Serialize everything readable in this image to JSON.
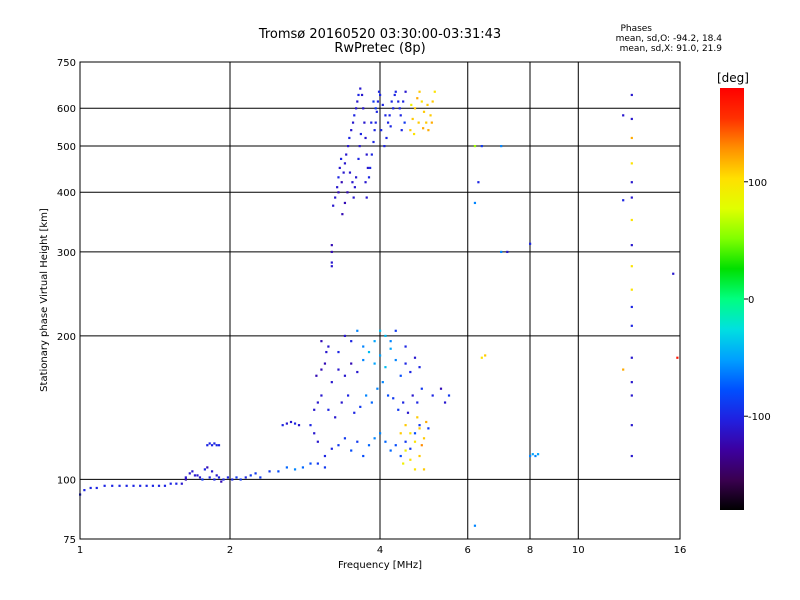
{
  "header": {
    "title": "Tromsø 20160520 03:30:00-03:31:43",
    "subtitle": "RwPretec (8p)"
  },
  "stats": {
    "heading": "Phases",
    "line_o": "mean, sd,O: -94.2, 18.4",
    "line_x": "mean, sd,X:  91.0, 21.9"
  },
  "colorbar": {
    "unit": "[deg]",
    "ticks": [
      {
        "value": 100,
        "label": "100"
      },
      {
        "value": 0,
        "label": "0"
      },
      {
        "value": -100,
        "label": "-100"
      }
    ],
    "range": [
      -180,
      180
    ],
    "palette": [
      "#000000",
      "#3a0050",
      "#3c00a0",
      "#2020e0",
      "#0050ff",
      "#00a0ff",
      "#00e0e0",
      "#00ff80",
      "#00e000",
      "#80ff00",
      "#e0ff00",
      "#ffe000",
      "#ff9000",
      "#ff3000",
      "#ff0000"
    ]
  },
  "chart_data": {
    "type": "scatter",
    "title": "Tromsø 20160520 03:30:00-03:31:43",
    "subtitle": "RwPretec (8p)",
    "xlabel": "Frequency [MHz]",
    "ylabel": "Stationary phase Virtual Height [km]",
    "xscale": "log",
    "yscale": "log",
    "xlim": [
      1,
      16
    ],
    "ylim": [
      75,
      750
    ],
    "x_ticks": [
      {
        "value": 1,
        "label": "1"
      },
      {
        "value": 2,
        "label": "2"
      },
      {
        "value": 4,
        "label": "4"
      },
      {
        "value": 6,
        "label": "6"
      },
      {
        "value": 8,
        "label": "8"
      },
      {
        "value": 10,
        "label": "10"
      },
      {
        "value": 16,
        "label": "16"
      }
    ],
    "y_ticks": [
      {
        "value": 75,
        "label": "75"
      },
      {
        "value": 100,
        "label": "100"
      },
      {
        "value": 200,
        "label": "200"
      },
      {
        "value": 300,
        "label": "300"
      },
      {
        "value": 400,
        "label": "400"
      },
      {
        "value": 500,
        "label": "500"
      },
      {
        "value": 600,
        "label": "600"
      },
      {
        "value": 750,
        "label": "750"
      }
    ],
    "x_grid": [
      1,
      2,
      4,
      6,
      8,
      10,
      16
    ],
    "y_grid": [
      100,
      200,
      300,
      400,
      500,
      600
    ],
    "color_encoding": "phase [deg]",
    "points": [
      [
        1.0,
        93,
        -100
      ],
      [
        1.02,
        95,
        -100
      ],
      [
        1.05,
        96,
        -100
      ],
      [
        1.08,
        96,
        -100
      ],
      [
        1.12,
        97,
        -100
      ],
      [
        1.16,
        97,
        -100
      ],
      [
        1.2,
        97,
        -100
      ],
      [
        1.24,
        97,
        -100
      ],
      [
        1.28,
        97,
        -100
      ],
      [
        1.32,
        97,
        -100
      ],
      [
        1.36,
        97,
        -100
      ],
      [
        1.4,
        97,
        -100
      ],
      [
        1.44,
        97,
        -100
      ],
      [
        1.48,
        97,
        -100
      ],
      [
        1.52,
        98,
        -100
      ],
      [
        1.56,
        98,
        -100
      ],
      [
        1.6,
        98,
        -110
      ],
      [
        1.63,
        101,
        -110
      ],
      [
        1.66,
        103,
        -110
      ],
      [
        1.7,
        102,
        -110
      ],
      [
        1.74,
        101,
        -110
      ],
      [
        1.78,
        105,
        -100
      ],
      [
        1.82,
        101,
        -100
      ],
      [
        1.86,
        100,
        -100
      ],
      [
        1.9,
        101,
        -100
      ],
      [
        1.94,
        100,
        -100
      ],
      [
        1.98,
        101,
        -100
      ],
      [
        2.02,
        100,
        -100
      ],
      [
        2.06,
        101,
        -90
      ],
      [
        2.1,
        100,
        -90
      ],
      [
        2.15,
        101,
        -100
      ],
      [
        2.2,
        102,
        -90
      ],
      [
        2.25,
        103,
        -90
      ],
      [
        2.3,
        101,
        -90
      ],
      [
        2.4,
        104,
        -90
      ],
      [
        2.5,
        104,
        -80
      ],
      [
        2.6,
        106,
        -70
      ],
      [
        2.7,
        105,
        -60
      ],
      [
        2.8,
        106,
        -70
      ],
      [
        2.9,
        108,
        -80
      ],
      [
        3.0,
        108,
        -90
      ],
      [
        3.1,
        106,
        -90
      ],
      [
        1.63,
        100,
        -120
      ],
      [
        1.68,
        104,
        -110
      ],
      [
        1.72,
        102,
        -110
      ],
      [
        1.76,
        100,
        -90
      ],
      [
        1.8,
        106,
        -120
      ],
      [
        1.84,
        104,
        -110
      ],
      [
        1.88,
        102,
        -110
      ],
      [
        1.92,
        99,
        -120
      ],
      [
        1.8,
        118,
        -100
      ],
      [
        1.82,
        119,
        -100
      ],
      [
        1.84,
        118,
        -100
      ],
      [
        1.86,
        119,
        -100
      ],
      [
        1.88,
        118,
        -100
      ],
      [
        1.9,
        118,
        -100
      ],
      [
        2.55,
        130,
        -100
      ],
      [
        2.6,
        131,
        -110
      ],
      [
        2.65,
        132,
        -110
      ],
      [
        2.7,
        131,
        -100
      ],
      [
        2.75,
        130,
        -110
      ],
      [
        2.9,
        130,
        -100
      ],
      [
        2.95,
        125,
        -110
      ],
      [
        3.0,
        120,
        -110
      ],
      [
        2.95,
        140,
        -110
      ],
      [
        3.0,
        145,
        -110
      ],
      [
        3.05,
        150,
        -110
      ],
      [
        2.98,
        165,
        -120
      ],
      [
        3.05,
        170,
        -120
      ],
      [
        3.1,
        175,
        -120
      ],
      [
        3.12,
        185,
        -110
      ],
      [
        3.15,
        190,
        -110
      ],
      [
        3.05,
        195,
        -120
      ],
      [
        3.1,
        112,
        -100
      ],
      [
        3.2,
        116,
        -100
      ],
      [
        3.3,
        118,
        -90
      ],
      [
        3.4,
        122,
        -90
      ],
      [
        3.5,
        115,
        -80
      ],
      [
        3.6,
        120,
        -90
      ],
      [
        3.7,
        112,
        -80
      ],
      [
        3.8,
        118,
        -70
      ],
      [
        3.9,
        122,
        -60
      ],
      [
        4.0,
        125,
        -60
      ],
      [
        4.1,
        120,
        -70
      ],
      [
        4.2,
        115,
        -70
      ],
      [
        4.3,
        118,
        -80
      ],
      [
        4.4,
        112,
        -80
      ],
      [
        4.5,
        120,
        -90
      ],
      [
        4.6,
        116,
        -90
      ],
      [
        4.7,
        125,
        -80
      ],
      [
        4.8,
        130,
        -90
      ],
      [
        5.0,
        128,
        -90
      ],
      [
        3.15,
        140,
        -100
      ],
      [
        3.25,
        135,
        -110
      ],
      [
        3.35,
        145,
        -110
      ],
      [
        3.45,
        150,
        -100
      ],
      [
        3.55,
        138,
        -100
      ],
      [
        3.65,
        142,
        -90
      ],
      [
        3.75,
        150,
        -60
      ],
      [
        3.85,
        145,
        -70
      ],
      [
        3.95,
        155,
        -60
      ],
      [
        4.05,
        160,
        -60
      ],
      [
        4.15,
        150,
        -80
      ],
      [
        4.25,
        148,
        -90
      ],
      [
        4.35,
        140,
        -90
      ],
      [
        4.45,
        145,
        -100
      ],
      [
        4.55,
        138,
        -110
      ],
      [
        4.65,
        150,
        -110
      ],
      [
        4.75,
        145,
        -100
      ],
      [
        4.85,
        155,
        -90
      ],
      [
        5.1,
        150,
        -100
      ],
      [
        5.3,
        155,
        -120
      ],
      [
        5.4,
        145,
        -110
      ],
      [
        5.5,
        150,
        -90
      ],
      [
        3.2,
        160,
        -110
      ],
      [
        3.3,
        170,
        -110
      ],
      [
        3.4,
        165,
        -110
      ],
      [
        3.5,
        175,
        -120
      ],
      [
        3.6,
        168,
        -110
      ],
      [
        3.7,
        178,
        -60
      ],
      [
        3.8,
        185,
        -40
      ],
      [
        3.9,
        175,
        -50
      ],
      [
        4.0,
        182,
        -50
      ],
      [
        4.1,
        172,
        -40
      ],
      [
        4.2,
        188,
        -50
      ],
      [
        4.3,
        178,
        -60
      ],
      [
        4.4,
        165,
        -80
      ],
      [
        4.5,
        175,
        -100
      ],
      [
        4.6,
        168,
        -100
      ],
      [
        4.7,
        180,
        -110
      ],
      [
        4.8,
        172,
        -100
      ],
      [
        3.3,
        185,
        -100
      ],
      [
        3.5,
        195,
        -100
      ],
      [
        3.7,
        190,
        -60
      ],
      [
        3.9,
        195,
        -50
      ],
      [
        4.0,
        205,
        -40
      ],
      [
        4.1,
        200,
        -40
      ],
      [
        4.2,
        195,
        -60
      ],
      [
        4.3,
        205,
        -90
      ],
      [
        4.5,
        190,
        -100
      ],
      [
        3.6,
        205,
        -60
      ],
      [
        3.4,
        200,
        -110
      ],
      [
        4.4,
        125,
        110
      ],
      [
        4.5,
        130,
        110
      ],
      [
        4.6,
        125,
        100
      ],
      [
        4.7,
        120,
        100
      ],
      [
        4.8,
        128,
        110
      ],
      [
        4.9,
        122,
        110
      ],
      [
        4.5,
        115,
        90
      ],
      [
        4.6,
        110,
        100
      ],
      [
        4.8,
        112,
        110
      ],
      [
        4.9,
        105,
        110
      ],
      [
        4.7,
        105,
        100
      ],
      [
        4.95,
        132,
        120
      ],
      [
        4.85,
        118,
        130
      ],
      [
        4.75,
        135,
        110
      ],
      [
        4.45,
        108,
        90
      ],
      [
        3.2,
        280,
        -110
      ],
      [
        3.2,
        285,
        -110
      ],
      [
        3.2,
        300,
        -120
      ],
      [
        3.2,
        310,
        -120
      ],
      [
        3.22,
        375,
        -110
      ],
      [
        3.25,
        390,
        -110
      ],
      [
        3.28,
        410,
        -110
      ],
      [
        3.3,
        430,
        -100
      ],
      [
        3.32,
        450,
        -110
      ],
      [
        3.34,
        470,
        -100
      ],
      [
        3.3,
        400,
        -120
      ],
      [
        3.35,
        420,
        -120
      ],
      [
        3.38,
        440,
        -110
      ],
      [
        3.4,
        460,
        -110
      ],
      [
        3.42,
        480,
        -110
      ],
      [
        3.45,
        500,
        -110
      ],
      [
        3.47,
        520,
        -100
      ],
      [
        3.5,
        540,
        -110
      ],
      [
        3.53,
        560,
        -110
      ],
      [
        3.55,
        580,
        -100
      ],
      [
        3.58,
        600,
        -110
      ],
      [
        3.6,
        620,
        -110
      ],
      [
        3.62,
        640,
        -100
      ],
      [
        3.65,
        660,
        -110
      ],
      [
        3.68,
        640,
        -110
      ],
      [
        3.7,
        600,
        -110
      ],
      [
        3.72,
        560,
        -110
      ],
      [
        3.74,
        520,
        -110
      ],
      [
        3.76,
        480,
        -110
      ],
      [
        3.78,
        450,
        -110
      ],
      [
        3.8,
        430,
        -100
      ],
      [
        3.82,
        450,
        -100
      ],
      [
        3.85,
        480,
        -100
      ],
      [
        3.88,
        510,
        -100
      ],
      [
        3.9,
        540,
        -100
      ],
      [
        3.92,
        560,
        -100
      ],
      [
        3.94,
        590,
        -100
      ],
      [
        3.96,
        620,
        -100
      ],
      [
        3.98,
        650,
        -100
      ],
      [
        4.0,
        640,
        -100
      ],
      [
        4.05,
        610,
        -100
      ],
      [
        4.1,
        580,
        -100
      ],
      [
        4.15,
        560,
        -100
      ],
      [
        4.2,
        550,
        -100
      ],
      [
        4.25,
        600,
        -100
      ],
      [
        4.3,
        650,
        -100
      ],
      [
        4.35,
        620,
        -100
      ],
      [
        4.4,
        580,
        -100
      ],
      [
        4.45,
        620,
        -100
      ],
      [
        4.5,
        650,
        -110
      ],
      [
        3.52,
        420,
        -110
      ],
      [
        3.48,
        440,
        -110
      ],
      [
        3.44,
        400,
        -120
      ],
      [
        3.4,
        380,
        -120
      ],
      [
        3.36,
        360,
        -120
      ],
      [
        3.54,
        390,
        -110
      ],
      [
        3.56,
        410,
        -110
      ],
      [
        3.58,
        430,
        -110
      ],
      [
        3.64,
        500,
        -110
      ],
      [
        3.66,
        530,
        -100
      ],
      [
        3.62,
        470,
        -100
      ],
      [
        3.76,
        390,
        -110
      ],
      [
        3.74,
        420,
        -110
      ],
      [
        3.84,
        560,
        -100
      ],
      [
        3.92,
        600,
        -90
      ],
      [
        3.88,
        620,
        -90
      ],
      [
        4.02,
        540,
        -100
      ],
      [
        4.08,
        500,
        -100
      ],
      [
        4.12,
        520,
        -100
      ],
      [
        4.18,
        580,
        -100
      ],
      [
        4.22,
        620,
        -100
      ],
      [
        4.28,
        640,
        -100
      ],
      [
        4.38,
        600,
        -100
      ],
      [
        4.42,
        540,
        -100
      ],
      [
        4.48,
        560,
        -90
      ],
      [
        4.6,
        540,
        110
      ],
      [
        4.65,
        570,
        110
      ],
      [
        4.7,
        600,
        110
      ],
      [
        4.75,
        630,
        120
      ],
      [
        4.8,
        650,
        110
      ],
      [
        4.85,
        620,
        100
      ],
      [
        4.9,
        590,
        110
      ],
      [
        4.95,
        560,
        110
      ],
      [
        5.0,
        540,
        120
      ],
      [
        5.05,
        580,
        110
      ],
      [
        5.1,
        620,
        110
      ],
      [
        5.15,
        650,
        100
      ],
      [
        4.62,
        610,
        90
      ],
      [
        4.68,
        530,
        100
      ],
      [
        4.78,
        560,
        110
      ],
      [
        4.88,
        545,
        120
      ],
      [
        4.98,
        610,
        110
      ],
      [
        5.08,
        560,
        120
      ],
      [
        6.2,
        500,
        60
      ],
      [
        6.3,
        420,
        -100
      ],
      [
        6.4,
        500,
        -90
      ],
      [
        7.0,
        500,
        -60
      ],
      [
        6.2,
        380,
        -60
      ],
      [
        6.2,
        80,
        -60
      ],
      [
        6.4,
        180,
        100
      ],
      [
        6.5,
        182,
        110
      ],
      [
        7.0,
        300,
        -60
      ],
      [
        7.2,
        300,
        -110
      ],
      [
        8.0,
        112,
        -60
      ],
      [
        8.1,
        113,
        -50
      ],
      [
        8.2,
        112,
        -60
      ],
      [
        8.3,
        113,
        -50
      ],
      [
        8.0,
        312,
        -100
      ],
      [
        12.3,
        580,
        -110
      ],
      [
        12.8,
        640,
        -110
      ],
      [
        12.8,
        570,
        -110
      ],
      [
        12.8,
        520,
        120
      ],
      [
        12.8,
        460,
        100
      ],
      [
        12.8,
        420,
        -110
      ],
      [
        12.8,
        390,
        -110
      ],
      [
        12.8,
        350,
        100
      ],
      [
        12.8,
        310,
        -110
      ],
      [
        12.8,
        280,
        100
      ],
      [
        12.8,
        250,
        100
      ],
      [
        12.8,
        230,
        -100
      ],
      [
        12.8,
        210,
        -100
      ],
      [
        12.8,
        180,
        -110
      ],
      [
        12.8,
        160,
        -110
      ],
      [
        12.8,
        150,
        -110
      ],
      [
        12.8,
        130,
        -110
      ],
      [
        12.8,
        112,
        -110
      ],
      [
        12.3,
        170,
        120
      ],
      [
        12.3,
        385,
        -100
      ],
      [
        15.5,
        270,
        -110
      ],
      [
        15.8,
        180,
        170
      ]
    ]
  }
}
